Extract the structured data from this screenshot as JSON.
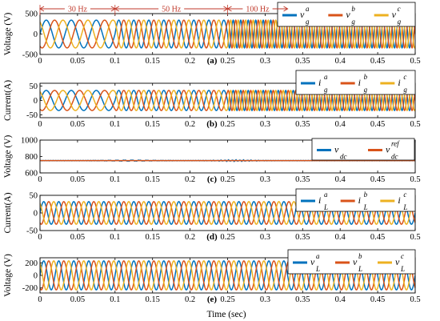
{
  "figure": {
    "xlabel": "Time (sec)"
  },
  "chart_data": [
    {
      "type": "line",
      "panel": "(a)",
      "ylabel": "Voltage (V)",
      "xlim": [
        0,
        0.5
      ],
      "ylim": [
        -500,
        500
      ],
      "xticks": [
        "0",
        "0.05",
        "0.1",
        "0.15",
        "0.2",
        "0.25",
        "0.3",
        "0.35",
        "0.4",
        "0.45",
        "0.5"
      ],
      "yticks": [
        {
          "v": -500,
          "t": "-500"
        },
        {
          "v": 0,
          "t": "0"
        },
        {
          "v": 500,
          "t": "500"
        }
      ],
      "amplitude": 340,
      "freq_segments": [
        {
          "from": 0,
          "to": 0.1,
          "f": 30
        },
        {
          "from": 0.1,
          "to": 0.25,
          "f": 50
        },
        {
          "from": 0.25,
          "to": 0.5,
          "f": 100
        }
      ],
      "annotations": [
        {
          "label": "30 Hz",
          "from": 0,
          "to": 0.1
        },
        {
          "label": "50 Hz",
          "from": 0.1,
          "to": 0.25
        },
        {
          "label": "100 Hz",
          "from": 0.25,
          "to": 0.33
        }
      ],
      "legend_loc": "top-right",
      "series": [
        {
          "base": "v",
          "sup": "a",
          "sub": "g",
          "color": "#0072BD",
          "phase_deg": 0
        },
        {
          "base": "v",
          "sup": "b",
          "sub": "g",
          "color": "#D95319",
          "phase_deg": -120
        },
        {
          "base": "v",
          "sup": "c",
          "sub": "g",
          "color": "#EDB120",
          "phase_deg": 120
        }
      ]
    },
    {
      "type": "line",
      "panel": "(b)",
      "ylabel": "Current(A)",
      "xlim": [
        0,
        0.5
      ],
      "ylim": [
        -60,
        60
      ],
      "xticks": [
        "0",
        "0.05",
        "0.1",
        "0.15",
        "0.2",
        "0.25",
        "0.3",
        "0.35",
        "0.4",
        "0.45",
        "0.5"
      ],
      "yticks": [
        {
          "v": -50,
          "t": "-50"
        },
        {
          "v": 0,
          "t": "0"
        },
        {
          "v": 50,
          "t": "50"
        }
      ],
      "amplitude": 35,
      "freq_segments": [
        {
          "from": 0,
          "to": 0.1,
          "f": 30
        },
        {
          "from": 0.1,
          "to": 0.25,
          "f": 50
        },
        {
          "from": 0.25,
          "to": 0.5,
          "f": 100
        }
      ],
      "legend_loc": "top-right",
      "series": [
        {
          "base": "i",
          "sup": "a",
          "sub": "g",
          "color": "#0072BD",
          "phase_deg": 0
        },
        {
          "base": "i",
          "sup": "b",
          "sub": "g",
          "color": "#D95319",
          "phase_deg": -120
        },
        {
          "base": "i",
          "sup": "c",
          "sub": "g",
          "color": "#EDB120",
          "phase_deg": 120
        }
      ]
    },
    {
      "type": "line",
      "panel": "(c)",
      "ylabel": "Voltage (V)",
      "xlim": [
        0,
        0.5
      ],
      "ylim": [
        600,
        1000
      ],
      "xticks": [
        "0",
        "0.05",
        "0.1",
        "0.15",
        "0.2",
        "0.25",
        "0.3",
        "0.35",
        "0.4",
        "0.45",
        "0.5"
      ],
      "yticks": [
        {
          "v": 600,
          "t": "600"
        },
        {
          "v": 800,
          "t": "800"
        },
        {
          "v": 1000,
          "t": "1000"
        }
      ],
      "dc_level": 750,
      "legend_loc": "top-right",
      "series": [
        {
          "base": "v",
          "sup": "",
          "sub": "dc",
          "color": "#0072BD"
        },
        {
          "base": "v",
          "sup": "ref",
          "sub": "dc",
          "color": "#D95319"
        }
      ]
    },
    {
      "type": "line",
      "panel": "(d)",
      "ylabel": "Current(A)",
      "xlim": [
        0,
        0.5
      ],
      "ylim": [
        -50,
        50
      ],
      "xticks": [
        "0",
        "0.05",
        "0.1",
        "0.15",
        "0.2",
        "0.25",
        "0.3",
        "0.35",
        "0.4",
        "0.45",
        "0.5"
      ],
      "yticks": [
        {
          "v": -50,
          "t": "-50"
        },
        {
          "v": 0,
          "t": "0"
        },
        {
          "v": 50,
          "t": "50"
        }
      ],
      "amplitude": 32,
      "freq_segments": [
        {
          "from": 0,
          "to": 0.5,
          "f": 50
        }
      ],
      "legend_loc": "top-right",
      "series": [
        {
          "base": "i",
          "sup": "a",
          "sub": "L",
          "color": "#0072BD",
          "phase_deg": 0
        },
        {
          "base": "i",
          "sup": "b",
          "sub": "L",
          "color": "#D95319",
          "phase_deg": -120
        },
        {
          "base": "i",
          "sup": "c",
          "sub": "L",
          "color": "#EDB120",
          "phase_deg": 120
        }
      ]
    },
    {
      "type": "line",
      "panel": "(e)",
      "ylabel": "Voltage (V)",
      "xlim": [
        0,
        0.5
      ],
      "ylim": [
        -280,
        280
      ],
      "xticks": [
        "0",
        "0.05",
        "0.1",
        "0.15",
        "0.2",
        "0.25",
        "0.3",
        "0.35",
        "0.4",
        "0.45",
        "0.5"
      ],
      "yticks": [
        {
          "v": -200,
          "t": "-200"
        },
        {
          "v": 0,
          "t": "0"
        },
        {
          "v": 200,
          "t": "200"
        }
      ],
      "amplitude": 230,
      "freq_segments": [
        {
          "from": 0,
          "to": 0.5,
          "f": 50
        }
      ],
      "legend_loc": "top-right",
      "series": [
        {
          "base": "v",
          "sup": "a",
          "sub": "L",
          "color": "#0072BD",
          "phase_deg": 0
        },
        {
          "base": "v",
          "sup": "b",
          "sub": "L",
          "color": "#D95319",
          "phase_deg": -120
        },
        {
          "base": "v",
          "sup": "c",
          "sub": "L",
          "color": "#EDB120",
          "phase_deg": 120
        }
      ]
    }
  ]
}
